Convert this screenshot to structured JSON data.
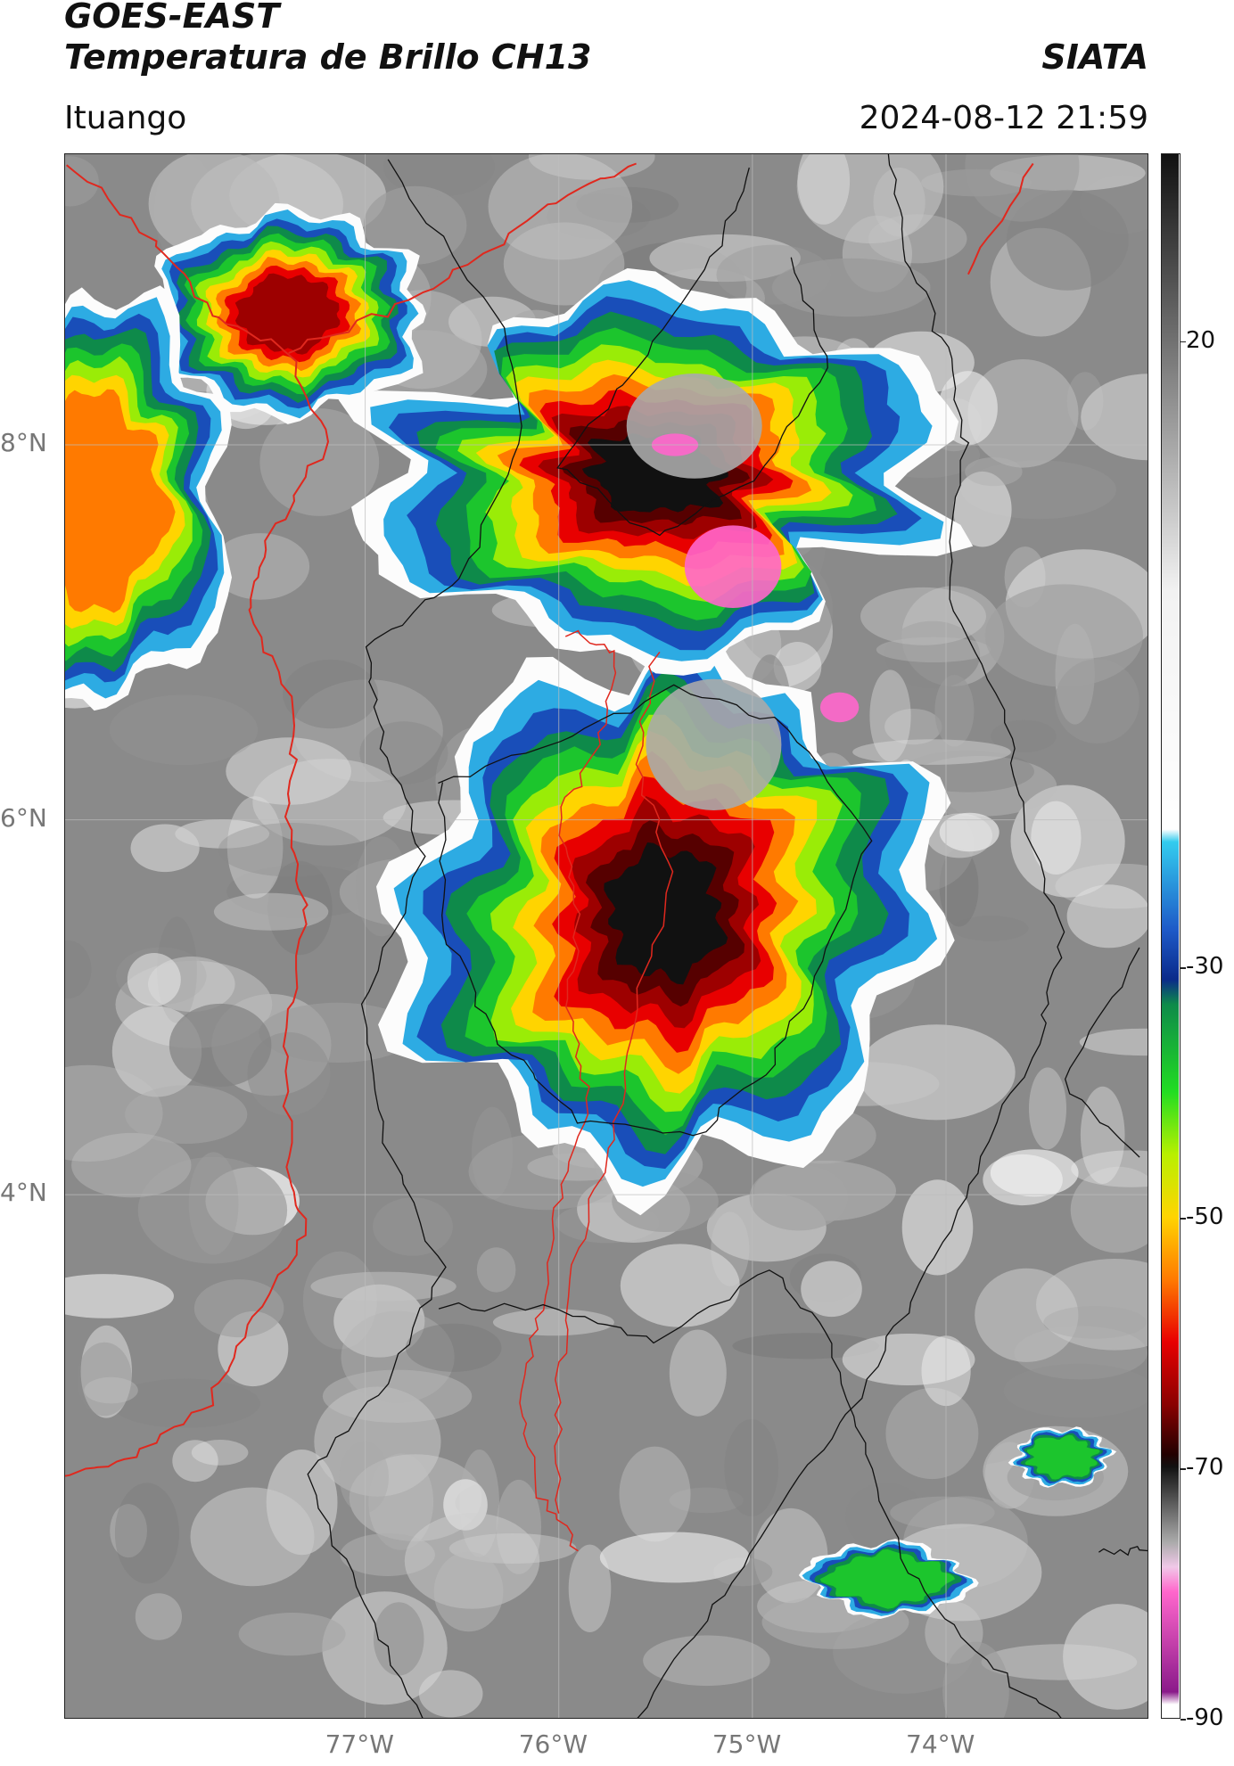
{
  "header": {
    "satellite": "GOES-EAST",
    "product": "Temperatura de Brillo CH13",
    "org": "SIATA",
    "region": "Ituango",
    "datetime": "2024-08-12 21:59"
  },
  "map": {
    "lon_range": [
      -78.55,
      -72.95
    ],
    "lat_range": [
      1.2,
      9.55
    ],
    "lat_ticks": [
      {
        "value": 8,
        "label": "8°N"
      },
      {
        "value": 6,
        "label": "6°N"
      },
      {
        "value": 4,
        "label": "4°N"
      }
    ],
    "lon_ticks": [
      {
        "value": -77,
        "label": "77°W"
      },
      {
        "value": -76,
        "label": "76°W"
      },
      {
        "value": -75,
        "label": "75°W"
      },
      {
        "value": -74,
        "label": "74°W"
      }
    ],
    "storms": [
      {
        "name": "central-mcs",
        "lon": -75.45,
        "lat": 5.5,
        "rlon": 1.32,
        "rlat": 1.45,
        "core": -70
      },
      {
        "name": "northern-cluster",
        "lon": -75.5,
        "lat": 7.85,
        "rlon": 1.45,
        "rlat": 0.95,
        "core": -72
      },
      {
        "name": "northwest-cell",
        "lon": -77.4,
        "lat": 8.7,
        "rlon": 0.7,
        "rlat": 0.55,
        "core": -65
      },
      {
        "name": "west-edge",
        "lon": -78.4,
        "lat": 7.7,
        "rlon": 0.7,
        "rlat": 1.1,
        "core": -58
      },
      {
        "name": "southeast-small",
        "lon": -74.3,
        "lat": 1.95,
        "rlon": 0.4,
        "rlat": 0.2,
        "core": -40
      },
      {
        "name": "east-small",
        "lon": -73.4,
        "lat": 2.6,
        "rlon": 0.25,
        "rlat": 0.15,
        "core": -42
      }
    ],
    "colors": {
      "warm_gray": "#8a8a8a",
      "border_national": "#e0281e",
      "border_admin": "#111111",
      "grid": "#bdbdbd"
    }
  },
  "colorbar": {
    "range": [
      -90,
      35
    ],
    "ticks": [
      {
        "value": 20,
        "label": "20"
      },
      {
        "value": -30,
        "label": "-30"
      },
      {
        "value": -50,
        "label": "-50"
      },
      {
        "value": -70,
        "label": "-70"
      },
      {
        "value": -90,
        "label": "-90"
      }
    ],
    "stops": [
      {
        "v": 35,
        "c": "#111111"
      },
      {
        "v": 0,
        "c": "#f2f2f2"
      },
      {
        "v": -19.9,
        "c": "#ffffff"
      },
      {
        "v": -20,
        "c": "#33ccee"
      },
      {
        "v": -27,
        "c": "#1e5ac8"
      },
      {
        "v": -31,
        "c": "#0a2a8a"
      },
      {
        "v": -33,
        "c": "#0e8a4a"
      },
      {
        "v": -40,
        "c": "#22dd22"
      },
      {
        "v": -45,
        "c": "#b8f000"
      },
      {
        "v": -50,
        "c": "#ffd400"
      },
      {
        "v": -55,
        "c": "#ff7a00"
      },
      {
        "v": -60,
        "c": "#e80000"
      },
      {
        "v": -65,
        "c": "#8a0000"
      },
      {
        "v": -69,
        "c": "#220000"
      },
      {
        "v": -70,
        "c": "#111111"
      },
      {
        "v": -76,
        "c": "#aaaaaa"
      },
      {
        "v": -78,
        "c": "#f0c8e8"
      },
      {
        "v": -80,
        "c": "#ff66cc"
      },
      {
        "v": -88,
        "c": "#8a1a8a"
      },
      {
        "v": -89,
        "c": "#ffffff"
      }
    ]
  }
}
